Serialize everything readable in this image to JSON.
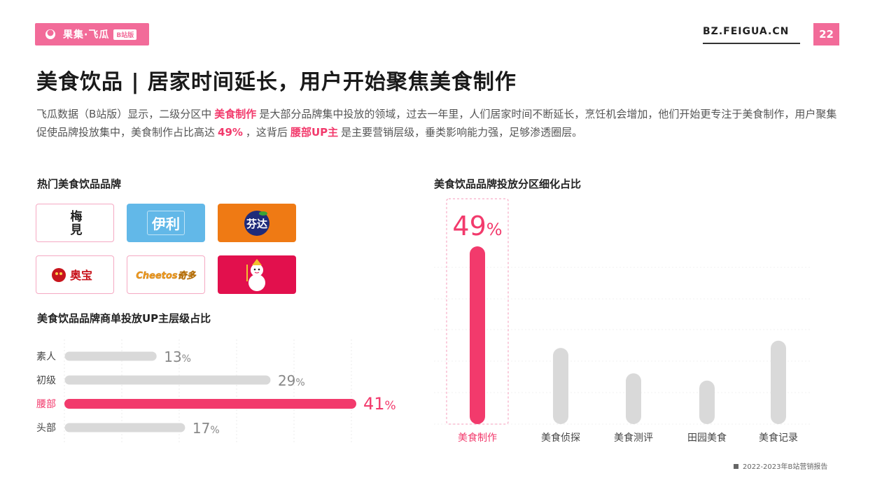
{
  "header": {
    "logo_brand": "果集·飞瓜",
    "logo_tag": "B站版",
    "site_url": "BZ.FEIGUA.CN",
    "page_number": "22"
  },
  "title": "美食饮品 | 居家时间延长，用户开始聚焦美食制作",
  "intro": {
    "part1": "飞瓜数据（B站版）显示，二级分区中",
    "hl1": "美食制作",
    "part2": "是大部分品牌集中投放的领域，过去一年里，人们居家时间不断延长，烹饪机会增加，他们开始更专注于美食制作，用户聚集促使品牌投放集中，美食制作占比高达",
    "hl2": "49%",
    "part3": "，这背后",
    "hl3": "腰部UP主",
    "part4": "是主要营销层级，垂类影响能力强，足够渗透圈层。"
  },
  "brands_section": {
    "title": "热门美食饮品品牌",
    "tiles": [
      {
        "logo": "梅见",
        "style": "outline",
        "bg": "#ffffff",
        "fg": "#222222"
      },
      {
        "logo": "伊利",
        "style": "fill",
        "bg": "#62b8e8",
        "fg": "#ffffff"
      },
      {
        "logo": "芬达",
        "style": "fill",
        "bg": "#ef7a14",
        "fg": "#ffffff"
      },
      {
        "logo": "奥宝",
        "style": "outline",
        "bg": "#ffffff",
        "fg": "#c8151d"
      },
      {
        "logo": "Cheetos奇多",
        "style": "outline",
        "bg": "#ffffff",
        "fg": "#f39a1c"
      },
      {
        "logo": "snowman-mascot",
        "style": "fill",
        "bg": "#e2104d",
        "fg": "#ffffff"
      }
    ]
  },
  "up_section": {
    "title": "美食饮品品牌商单投放UP主层级占比"
  },
  "distribution_section": {
    "title": "美食饮品品牌投放分区细化占比"
  },
  "footer": "2022-2023年B站营销报告",
  "colors": {
    "accent": "#f26b99",
    "highlight": "#f23a6c",
    "bar_gray": "#d9d9d9"
  },
  "chart_data": [
    {
      "type": "bar",
      "orientation": "horizontal",
      "title": "美食饮品品牌商单投放UP主层级占比",
      "categories": [
        "素人",
        "初级",
        "腰部",
        "头部"
      ],
      "values": [
        13,
        29,
        41,
        17
      ],
      "unit": "%",
      "highlight": "腰部",
      "xlim": [
        0,
        41
      ]
    },
    {
      "type": "bar",
      "orientation": "vertical",
      "title": "美食饮品品牌投放分区细化占比",
      "categories": [
        "美食制作",
        "美食侦探",
        "美食测评",
        "田园美食",
        "美食记录"
      ],
      "values": [
        49,
        21,
        14,
        12,
        23
      ],
      "value_labels": [
        "49%"
      ],
      "highlight": "美食制作",
      "ylim": [
        0,
        49
      ]
    }
  ]
}
